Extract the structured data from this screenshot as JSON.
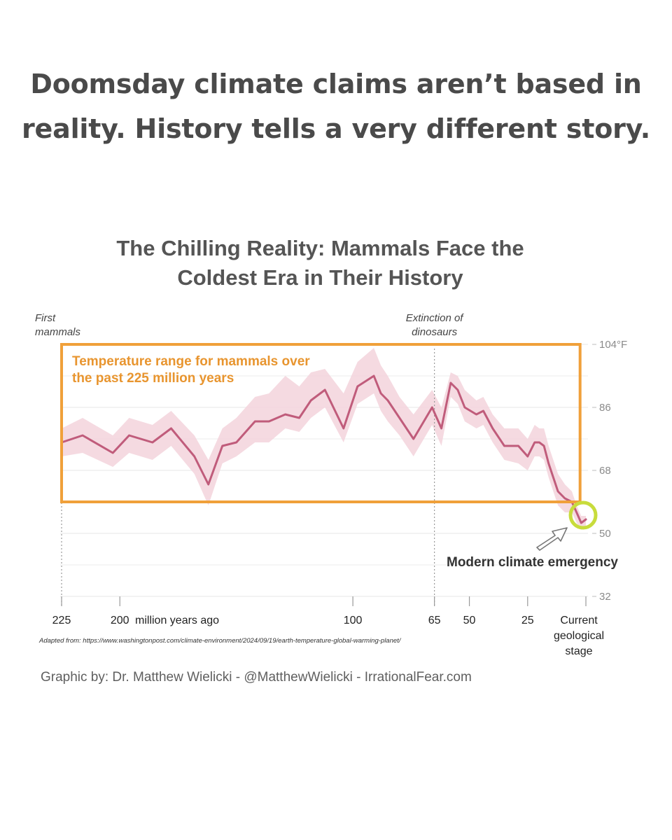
{
  "page": {
    "headline_line1": "Doomsday climate claims aren’t based in",
    "headline_line2": "reality. History tells a very different story.",
    "credit": "Graphic by: Dr. Matthew Wielicki - @MatthewWielicki - IrrationalFear.com",
    "source_note": "Adapted from: https://www.washingtonpost.com/climate-environment/2024/09/19/earth-temperature-global-warming-planet/"
  },
  "colors": {
    "headline": "#4a4a4a",
    "line": "#c05c7b",
    "band": "#f3d3dc",
    "box": "#f0a03a",
    "box_text": "#e8952f",
    "highlight": "#c8dc3c",
    "axis_text": "#222222",
    "tick_text": "#8a8a8a",
    "grid": "#ececec"
  },
  "chart_data": {
    "type": "line",
    "title_line1": "The Chilling Reality: Mammals Face the",
    "title_line2": "Coldest Era in Their History",
    "xlabel": "million years ago",
    "ylabel": "",
    "x_reversed": true,
    "xlim": [
      225,
      0
    ],
    "ylim": [
      32,
      104
    ],
    "grid": true,
    "y_ticks": [
      {
        "value": 104,
        "label": "104°F"
      },
      {
        "value": 86,
        "label": "86"
      },
      {
        "value": 68,
        "label": "68"
      },
      {
        "value": 50,
        "label": "50"
      },
      {
        "value": 32,
        "label": "32"
      }
    ],
    "x_ticks": [
      {
        "value": 225,
        "label": "225"
      },
      {
        "value": 200,
        "label": "200"
      },
      {
        "value": 100,
        "label": "100"
      },
      {
        "value": 65,
        "label": "65"
      },
      {
        "value": 50,
        "label": "50"
      },
      {
        "value": 25,
        "label": "25"
      },
      {
        "value": 0,
        "label": "Current geological stage",
        "lines": [
          "Current",
          "geological",
          "stage"
        ]
      }
    ],
    "x_unit_label": "million years ago",
    "event_markers": [
      {
        "x": 225,
        "label_lines": [
          "First",
          "mammals"
        ]
      },
      {
        "x": 65,
        "label_lines": [
          "Extinction of",
          "dinosaurs"
        ]
      }
    ],
    "range_box": {
      "label_lines": [
        "Temperature range for mammals over",
        "the past 225 million years"
      ],
      "x_range": [
        225,
        2.5
      ],
      "y_range": [
        59,
        104
      ]
    },
    "callout": {
      "label": "Modern climate emergency",
      "x": 0,
      "y": 54
    },
    "series": [
      {
        "x": [
          225,
          216,
          203,
          196,
          186,
          178,
          168,
          162,
          156,
          150,
          142,
          136,
          129,
          123,
          118,
          112,
          104,
          98,
          91,
          88,
          85,
          80,
          74,
          66,
          62,
          58,
          55,
          52,
          47,
          44,
          40,
          35,
          29,
          25,
          22,
          20,
          18,
          16,
          12,
          9,
          6,
          4,
          2,
          0
        ],
        "y": [
          76,
          78,
          73,
          78,
          76,
          80,
          72,
          64,
          75,
          76,
          82,
          82,
          84,
          83,
          88,
          91,
          80,
          92,
          95,
          90,
          88,
          83,
          77,
          86,
          80,
          93,
          91,
          86,
          84,
          85,
          80,
          75,
          75,
          72,
          76,
          76,
          75,
          70,
          62,
          60,
          59,
          56,
          53,
          54
        ],
        "upper": [
          80,
          83,
          78,
          83,
          81,
          85,
          78,
          71,
          80,
          83,
          89,
          90,
          95,
          92,
          96,
          97,
          90,
          99,
          103,
          98,
          95,
          89,
          84,
          91,
          86,
          96,
          95,
          91,
          88,
          89,
          84,
          80,
          80,
          77,
          81,
          80,
          80,
          75,
          67,
          64,
          62,
          58,
          55,
          55
        ],
        "lower": [
          72,
          73,
          69,
          73,
          71,
          75,
          67,
          58,
          70,
          72,
          76,
          76,
          80,
          79,
          83,
          86,
          76,
          87,
          90,
          85,
          82,
          78,
          72,
          81,
          75,
          89,
          87,
          82,
          80,
          81,
          76,
          71,
          70,
          68,
          72,
          72,
          71,
          66,
          58,
          56,
          56,
          53,
          51,
          52
        ]
      }
    ]
  }
}
